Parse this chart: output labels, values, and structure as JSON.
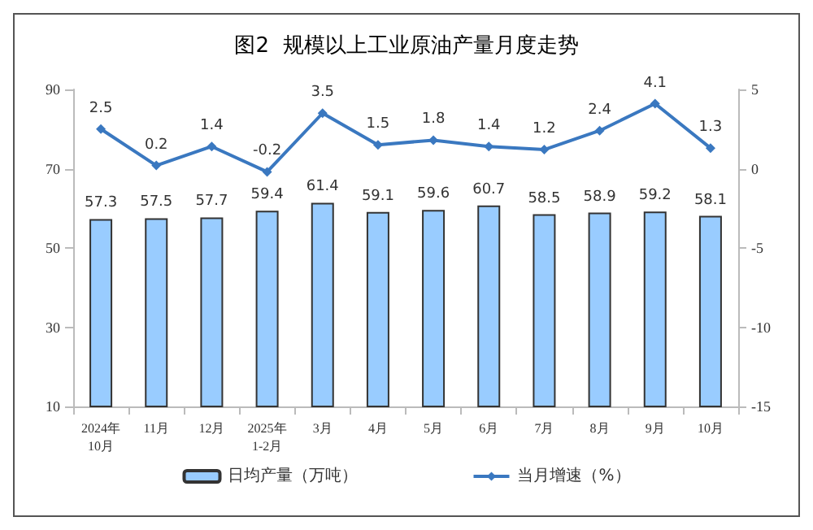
{
  "chart_data": {
    "type": "bar",
    "title": "图2  规模以上工业原油产量月度走势",
    "categories": [
      "2024年\n10月",
      "11月",
      "12月",
      "2025年\n1-2月",
      "3月",
      "4月",
      "5月",
      "6月",
      "7月",
      "8月",
      "9月",
      "10月"
    ],
    "series": [
      {
        "name": "日均产量（万吨）",
        "color": "#99ccff",
        "values": [
          57.3,
          57.5,
          57.7,
          59.4,
          61.4,
          59.1,
          59.6,
          60.7,
          58.5,
          58.9,
          59.2,
          58.1
        ]
      },
      {
        "name": "当月增速（%）",
        "type": "line",
        "axis": "y2",
        "color": "#3a78c0",
        "marker": "diamond",
        "values": [
          2.5,
          0.2,
          1.4,
          -0.2,
          3.5,
          1.5,
          1.8,
          1.4,
          1.2,
          2.4,
          4.1,
          1.3
        ]
      }
    ],
    "ylim": [
      10,
      90
    ],
    "yticks": [
      10,
      30,
      50,
      70,
      90
    ],
    "y2lim": [
      -15,
      5
    ],
    "y2ticks": [
      -15,
      -10,
      -5,
      0,
      5
    ],
    "data_labels": true,
    "grid": false,
    "legend": "bottom"
  }
}
